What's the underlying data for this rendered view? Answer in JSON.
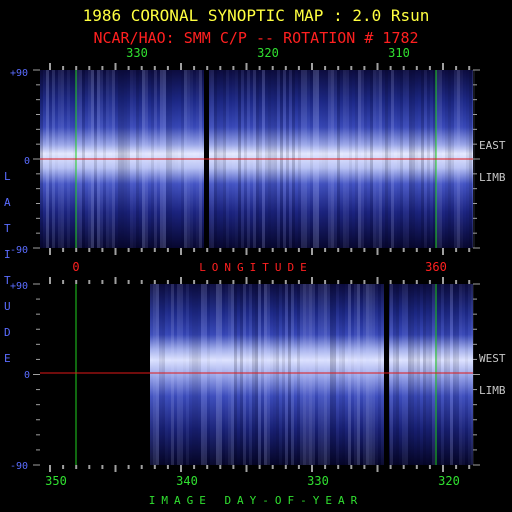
{
  "header": {
    "title": "1986 CORONAL SYNOPTIC MAP : 2.0 Rsun",
    "subtitle": "NCAR/HAO: SMM C/P -- ROTATION # 1782"
  },
  "colors": {
    "title": "#ffff40",
    "subtitle": "#ff2020",
    "green_text": "#30e030",
    "blue_text": "#5a6cff",
    "gray_text": "#c8c8c8",
    "tick": "#a0a0a0",
    "green_line": "#20d020",
    "red_line": "#e01818",
    "map_base": "#0a0a3c",
    "map_band": "#e8ecff"
  },
  "chart_data": [
    {
      "type": "heatmap",
      "name": "east-limb-map",
      "top_axis_labels": [
        "330",
        "320",
        "310"
      ],
      "bottom_axis_labels": [
        "0",
        "360"
      ],
      "xlabel": "LONGITUDE",
      "y_tick_labels": [
        "+90",
        "0",
        "-90"
      ],
      "ylim": [
        -90,
        90
      ],
      "limb_label": [
        "EAST",
        "LIMB"
      ],
      "data_gaps": [
        "left section 0-40% black band after 168 px; narrow gap"
      ],
      "bright_band_latitude_deg": 12,
      "equator_line_latitude": 0
    },
    {
      "type": "heatmap",
      "name": "west-limb-map",
      "bottom_axis_labels": [
        "350",
        "340",
        "330",
        "320"
      ],
      "xlabel": "IMAGE DAY-OF-YEAR",
      "y_tick_labels": [
        "+90",
        "0",
        "-90"
      ],
      "ylim": [
        -90,
        90
      ],
      "limb_label": [
        "WEST",
        "LIMB"
      ],
      "bright_band_latitude_deg": 18,
      "equator_line_latitude": 0
    }
  ],
  "side_label": "LATITUDE"
}
